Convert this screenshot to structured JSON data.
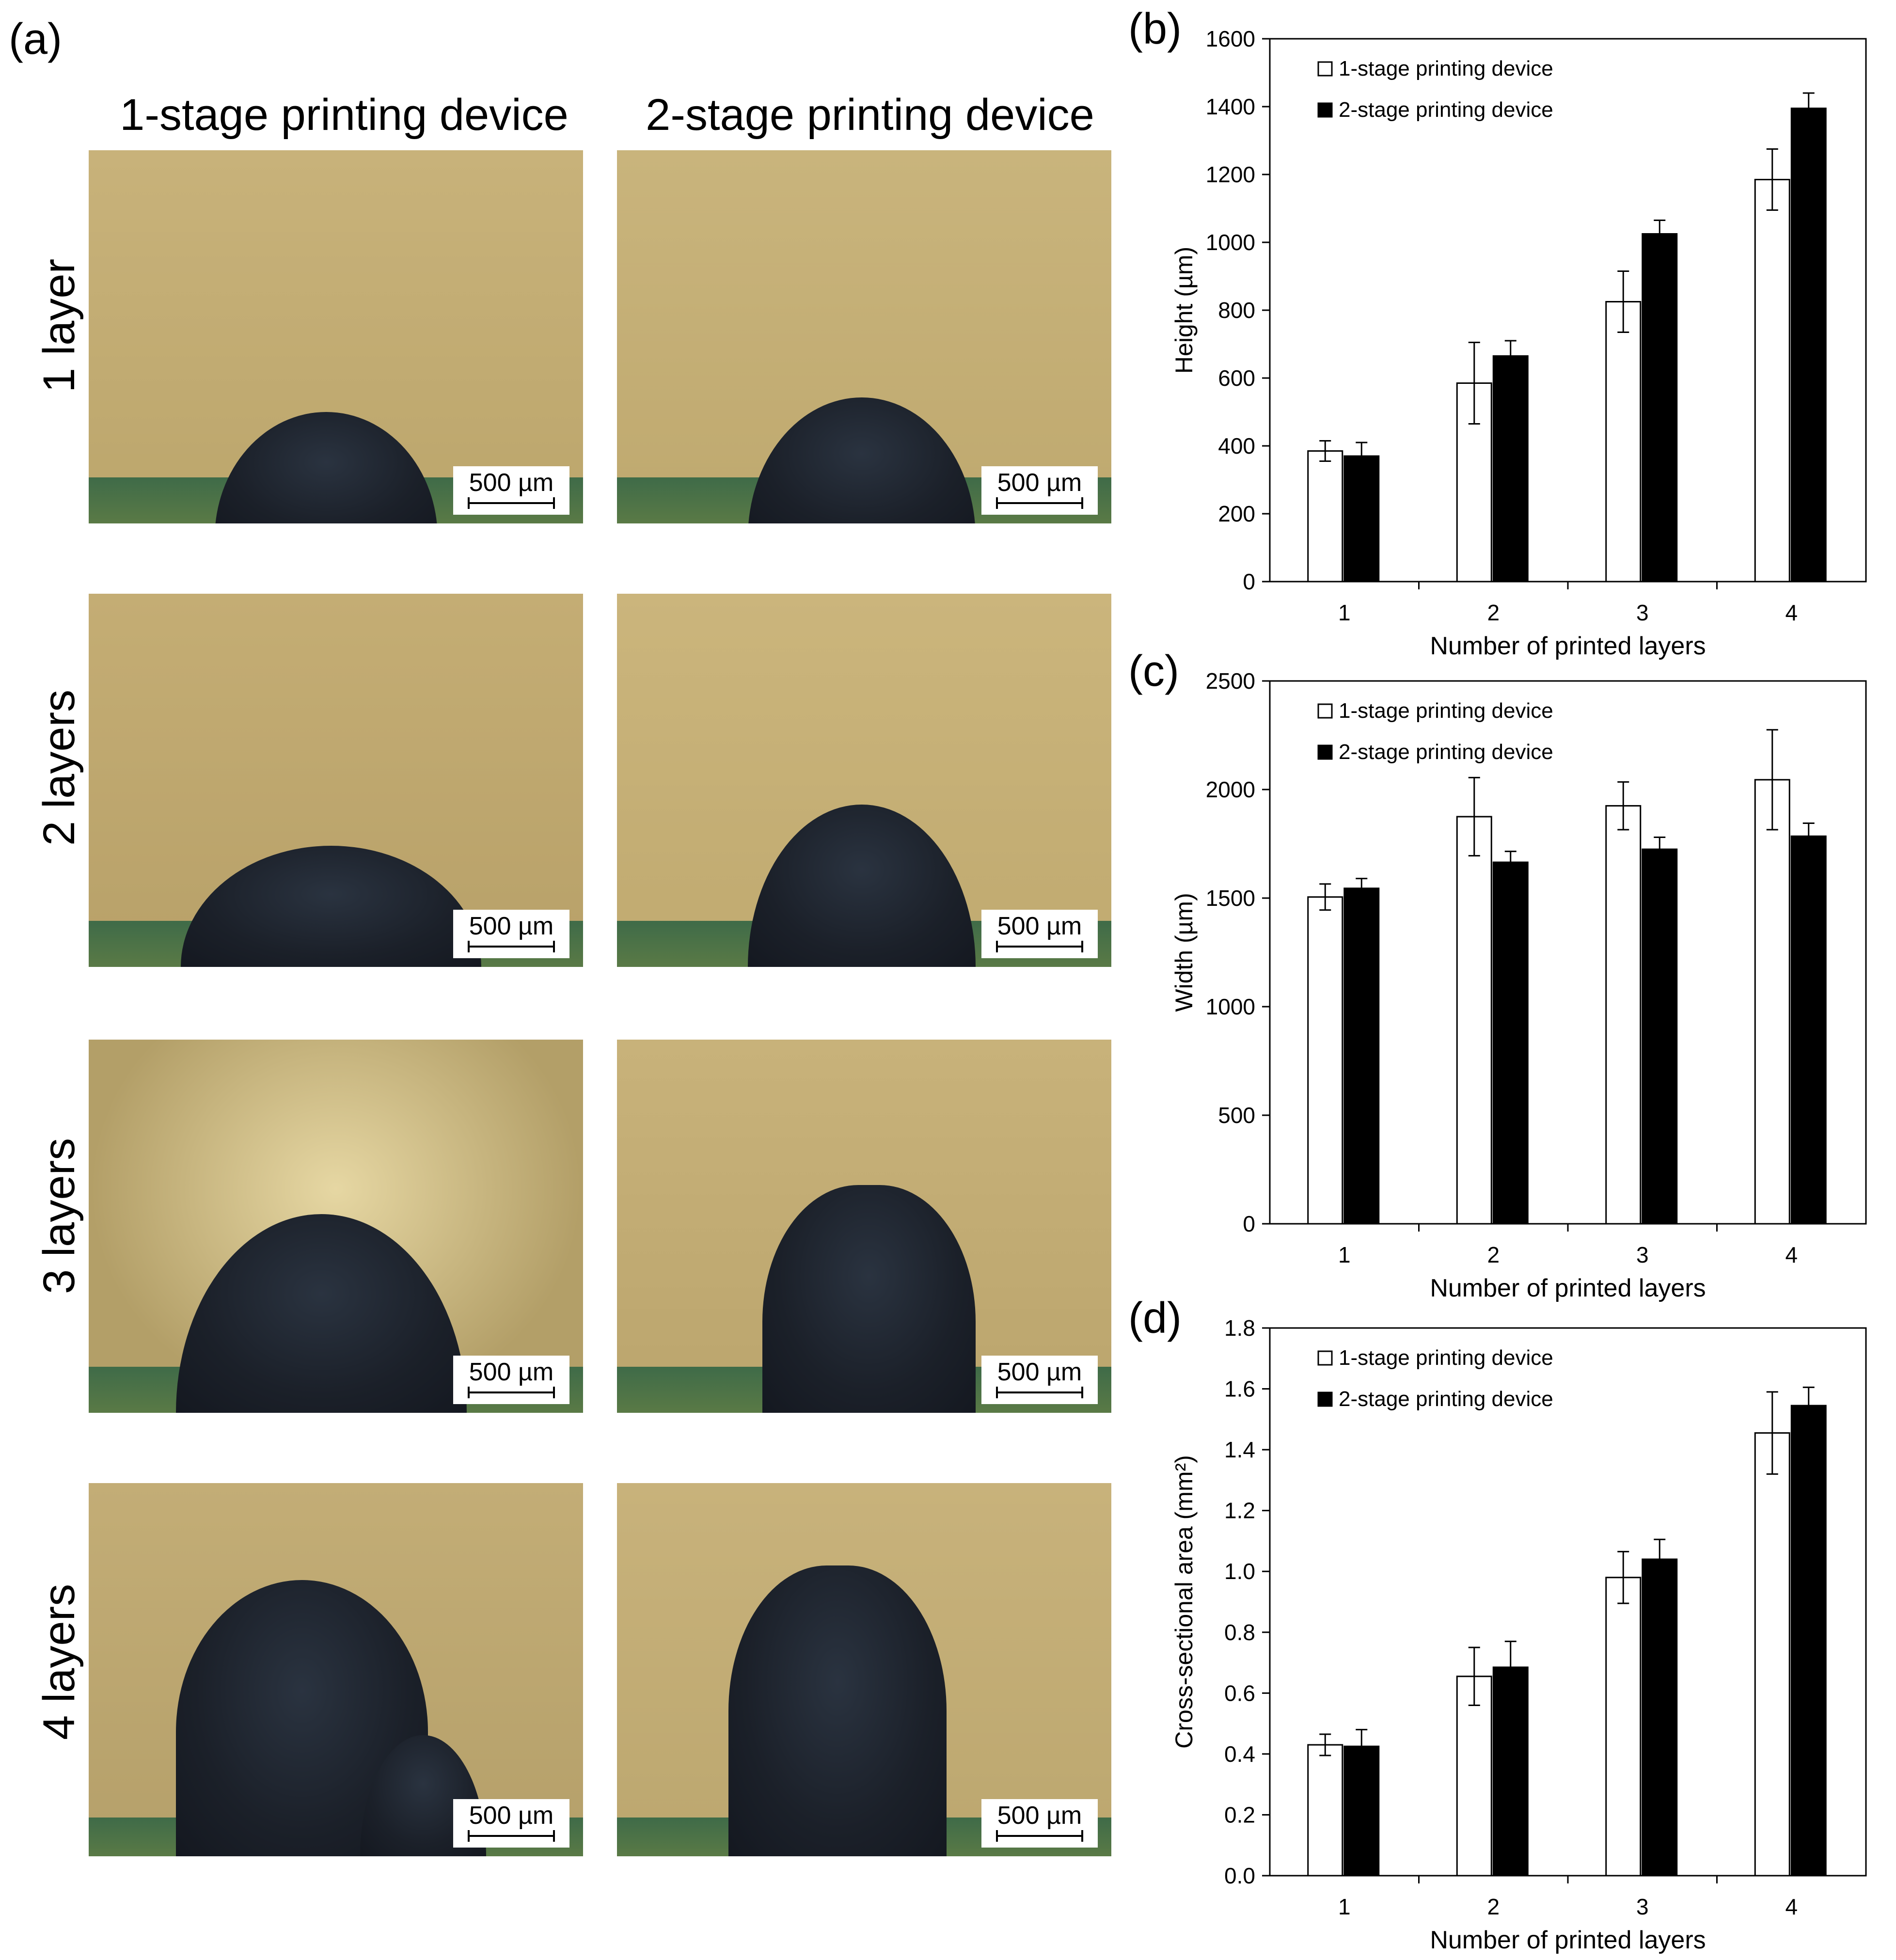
{
  "panel_a": {
    "label": "(a)",
    "columns": [
      "1-stage printing device",
      "2-stage printing device"
    ],
    "rows": [
      "1 layer",
      "2 layers",
      "3 layers",
      "4 layers"
    ],
    "scale_label": "500 µm"
  },
  "chart_data": [
    {
      "panel": "(b)",
      "type": "bar",
      "categories": [
        "1",
        "2",
        "3",
        "4"
      ],
      "xlabel": "Number of printed layers",
      "ylabel": "Height (µm)",
      "ylim": [
        0,
        1600
      ],
      "yticks": [
        "0",
        "200",
        "400",
        "600",
        "800",
        "1000",
        "1200",
        "1400",
        "1600"
      ],
      "legend_position": "top-left",
      "series": [
        {
          "name": "1-stage printing device",
          "values": [
            385,
            585,
            825,
            1185
          ],
          "errors": [
            30,
            120,
            90,
            90
          ],
          "color": "#ffffff"
        },
        {
          "name": "2-stage printing device",
          "values": [
            370,
            665,
            1025,
            1395
          ],
          "errors": [
            40,
            45,
            40,
            45
          ],
          "color": "#000000"
        }
      ]
    },
    {
      "panel": "(c)",
      "type": "bar",
      "categories": [
        "1",
        "2",
        "3",
        "4"
      ],
      "xlabel": "Number of printed layers",
      "ylabel": "Width (µm)",
      "ylim": [
        0,
        2500
      ],
      "yticks": [
        "0",
        "500",
        "1000",
        "1500",
        "2000",
        "2500"
      ],
      "legend_position": "top-left",
      "series": [
        {
          "name": "1-stage printing device",
          "values": [
            1505,
            1875,
            1925,
            2045
          ],
          "errors": [
            60,
            180,
            110,
            230
          ],
          "color": "#ffffff"
        },
        {
          "name": "2-stage printing device",
          "values": [
            1545,
            1665,
            1725,
            1785
          ],
          "errors": [
            45,
            50,
            55,
            60
          ],
          "color": "#000000"
        }
      ]
    },
    {
      "panel": "(d)",
      "type": "bar",
      "categories": [
        "1",
        "2",
        "3",
        "4"
      ],
      "xlabel": "Number of printed layers",
      "ylabel": "Cross-sectional area (mm²)",
      "ylim": [
        0,
        1.8
      ],
      "yticks": [
        "0.0",
        "0.2",
        "0.4",
        "0.6",
        "0.8",
        "1.0",
        "1.2",
        "1.4",
        "1.6",
        "1.8"
      ],
      "legend_position": "top-left",
      "series": [
        {
          "name": "1-stage printing device",
          "values": [
            0.43,
            0.655,
            0.98,
            1.455
          ],
          "errors": [
            0.035,
            0.095,
            0.085,
            0.135
          ],
          "color": "#ffffff"
        },
        {
          "name": "2-stage printing device",
          "values": [
            0.425,
            0.685,
            1.04,
            1.545
          ],
          "errors": [
            0.055,
            0.085,
            0.065,
            0.06
          ],
          "color": "#000000"
        }
      ]
    }
  ]
}
